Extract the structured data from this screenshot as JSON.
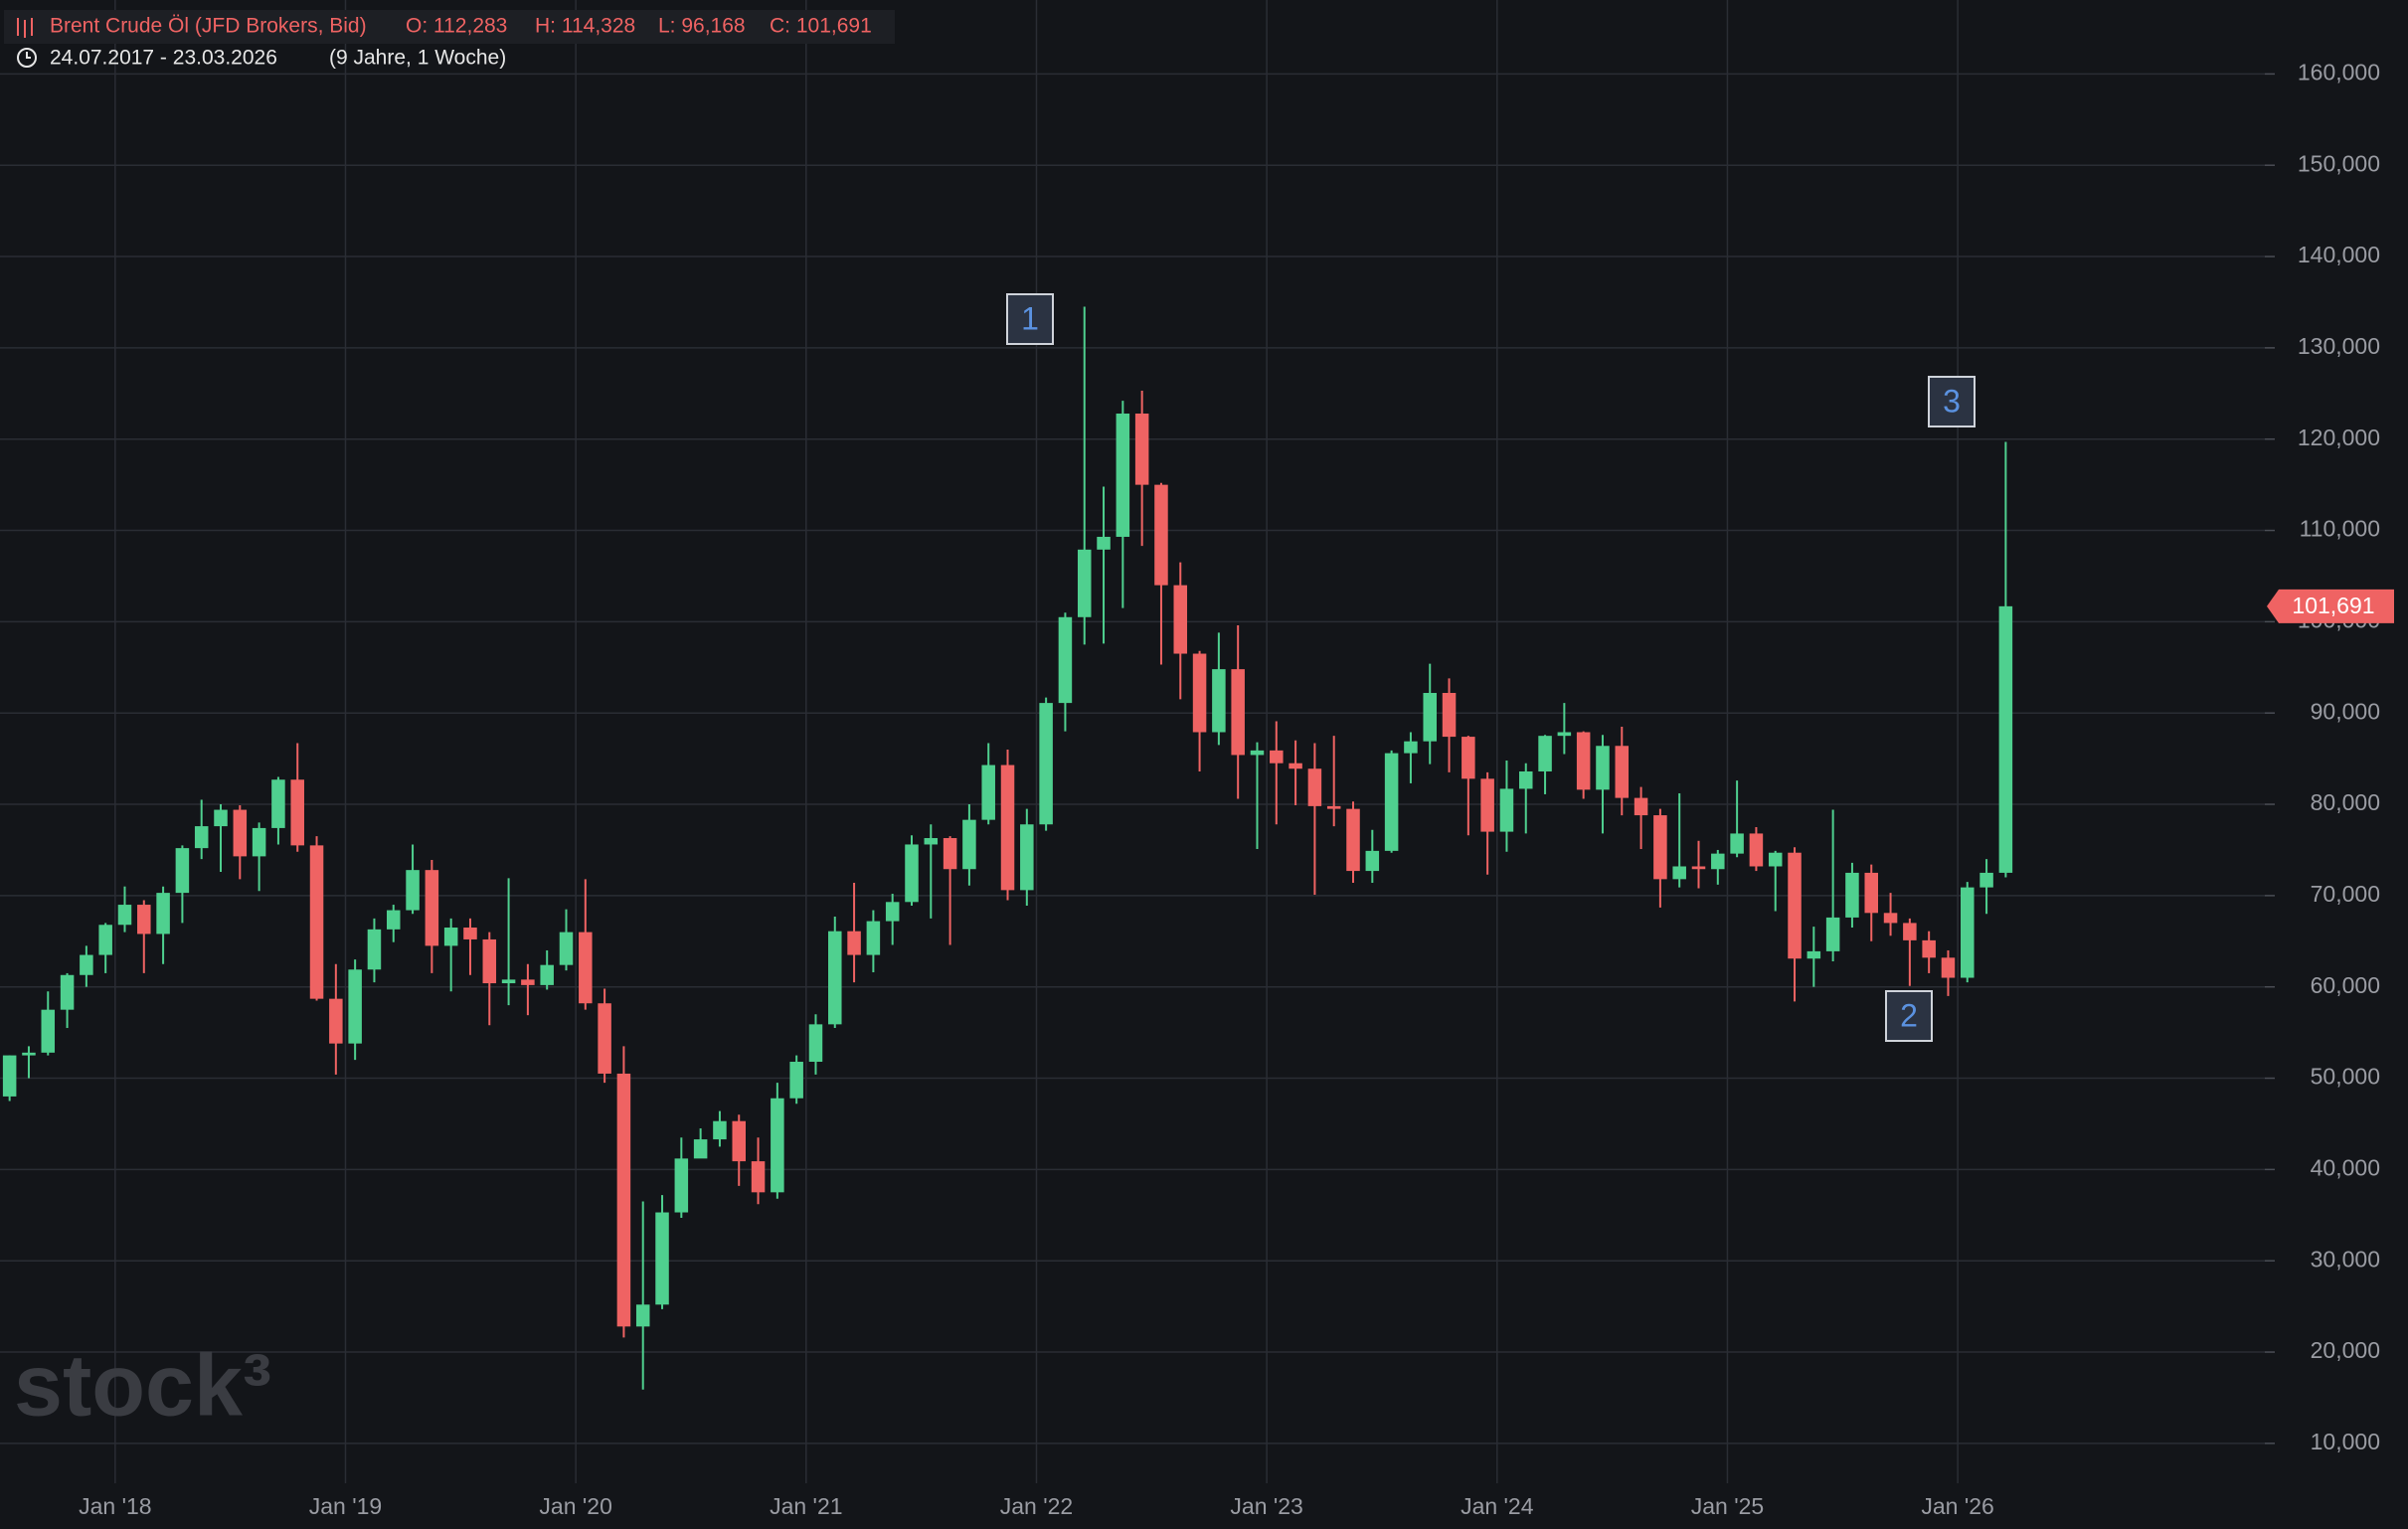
{
  "chart_data": {
    "type": "candlestick",
    "legend": {
      "name": "Brent Crude Öl (JFD Brokers, Bid)",
      "open": "O: 112,283",
      "high": "H: 114,328",
      "low": "L: 96,168",
      "close": "C: 101,691",
      "range": "24.07.2017 - 23.03.2026",
      "period": "(9 Jahre, 1 Woche)"
    },
    "logo": "stock³",
    "up_color": "#4fd08f",
    "down_color": "#ef6363",
    "x": [
      "2017-07",
      "2017-08",
      "2017-09",
      "2017-10",
      "2017-11",
      "2017-12",
      "2018-01",
      "2018-02",
      "2018-03",
      "2018-04",
      "2018-05",
      "2018-06",
      "2018-07",
      "2018-08",
      "2018-09",
      "2018-10",
      "2018-11",
      "2018-12",
      "2019-01",
      "2019-02",
      "2019-03",
      "2019-04",
      "2019-05",
      "2019-06",
      "2019-07",
      "2019-08",
      "2019-09",
      "2019-10",
      "2019-11",
      "2019-12",
      "2020-01",
      "2020-02",
      "2020-03",
      "2020-04",
      "2020-05",
      "2020-06",
      "2020-07",
      "2020-08",
      "2020-09",
      "2020-10",
      "2020-11",
      "2020-12",
      "2021-01",
      "2021-02",
      "2021-03",
      "2021-04",
      "2021-05",
      "2021-06",
      "2021-07",
      "2021-08",
      "2021-09",
      "2021-10",
      "2021-11",
      "2021-12",
      "2022-01",
      "2022-02",
      "2022-03",
      "2022-04",
      "2022-05",
      "2022-06",
      "2022-07",
      "2022-08",
      "2022-09",
      "2022-10",
      "2022-11",
      "2022-12",
      "2023-01",
      "2023-02",
      "2023-03",
      "2023-04",
      "2023-05",
      "2023-06",
      "2023-07",
      "2023-08",
      "2023-09",
      "2023-10",
      "2023-11",
      "2023-12",
      "2024-01",
      "2024-02",
      "2024-03",
      "2024-04",
      "2024-05",
      "2024-06",
      "2024-07",
      "2024-08",
      "2024-09",
      "2024-10",
      "2024-11",
      "2024-12",
      "2025-01",
      "2025-02",
      "2025-03",
      "2025-04",
      "2025-05",
      "2025-06",
      "2025-07",
      "2025-08",
      "2025-09",
      "2025-10",
      "2025-11",
      "2025-12",
      "2026-01",
      "2026-02",
      "2026-03"
    ],
    "open": [
      48,
      52.5,
      52.8,
      57.5,
      61.3,
      63.5,
      66.8,
      69,
      65.8,
      70.3,
      75.2,
      77.6,
      79.4,
      74.3,
      77.4,
      82.7,
      75.5,
      58.7,
      53.8,
      61.9,
      66.3,
      68.4,
      72.8,
      64.5,
      66.5,
      65.2,
      60.4,
      60.8,
      60.2,
      62.4,
      66,
      58.2,
      50.5,
      22.8,
      25.2,
      35.3,
      41.2,
      43.3,
      45.3,
      40.9,
      37.5,
      47.8,
      51.8,
      55.9,
      66.1,
      63.5,
      67.2,
      69.3,
      75.6,
      76.3,
      72.9,
      78.3,
      84.3,
      70.6,
      77.8,
      91.1,
      100.5,
      107.9,
      109.3,
      122.8,
      115,
      104,
      96.5,
      87.9,
      94.8,
      85.4,
      85.9,
      84.5,
      83.9,
      79.8,
      79.5,
      72.7,
      74.9,
      85.6,
      86.9,
      92.2,
      87.4,
      82.8,
      77,
      81.7,
      83.6,
      87.5,
      87.9,
      81.6,
      86.4,
      80.7,
      78.8,
      71.8,
      73.2,
      72.9,
      74.6,
      76.8,
      73.2,
      74.7,
      63.1,
      63.9,
      67.6,
      72.5,
      68.1,
      67,
      65.1,
      63.2,
      61,
      70.9,
      72.5
    ],
    "high": [
      52.5,
      53.5,
      59.5,
      61.5,
      64.5,
      67,
      71,
      69.5,
      71,
      75.5,
      80.5,
      80,
      79.9,
      78,
      83,
      86.7,
      76.5,
      62.5,
      63,
      67.5,
      69,
      75.6,
      73.9,
      67.5,
      67.5,
      66,
      71.9,
      62.5,
      64,
      68.5,
      71.8,
      59.8,
      53.5,
      36.5,
      37.2,
      43.5,
      44.5,
      46.4,
      46,
      43.5,
      49.5,
      52.5,
      57,
      67.7,
      71.4,
      68.4,
      70.2,
      76.6,
      77.8,
      76.5,
      80,
      86.7,
      86,
      79.5,
      91.7,
      101,
      134.5,
      114.8,
      124.2,
      125.3,
      115.2,
      106.5,
      96.8,
      98.8,
      99.6,
      86.8,
      89.1,
      87,
      86.7,
      87.5,
      80.3,
      77.2,
      85.9,
      87.9,
      95.4,
      93.8,
      87.5,
      83.5,
      84.8,
      84.5,
      87.6,
      91.1,
      88,
      87.6,
      88.5,
      81.9,
      79.5,
      81.2,
      76,
      75,
      82.6,
      77.5,
      74.9,
      75.3,
      66.6,
      79.4,
      73.6,
      73.4,
      70.3,
      67.5,
      66.1,
      64,
      71.5,
      74,
      119.7
    ],
    "low": [
      47.5,
      50,
      52.5,
      55.5,
      60,
      61.5,
      66,
      61.5,
      62.5,
      67,
      74,
      72.6,
      71.8,
      70.5,
      75.6,
      74.8,
      58.5,
      50.4,
      52,
      60.5,
      64.9,
      68,
      61.5,
      59.5,
      61.3,
      55.8,
      58,
      56.9,
      59.7,
      61.8,
      57.5,
      49.5,
      21.6,
      15.9,
      24.7,
      34.7,
      41.5,
      42.5,
      38.2,
      36.2,
      36.8,
      47.2,
      50.4,
      55.5,
      60.5,
      61.6,
      64.6,
      68.9,
      67.5,
      64.6,
      71.1,
      77.8,
      69.5,
      68.9,
      77.1,
      88,
      97.5,
      97.6,
      101.5,
      108.3,
      95.3,
      91.5,
      83.6,
      86.5,
      80.6,
      75.1,
      77.8,
      79.9,
      70.1,
      77.6,
      71.4,
      71.4,
      74.7,
      82.3,
      84.4,
      83.5,
      76.6,
      72.3,
      74.8,
      76.8,
      81.1,
      85.5,
      80.6,
      76.8,
      78.8,
      75.1,
      68.7,
      70.9,
      70.8,
      71.2,
      74.2,
      72.7,
      68.3,
      58.4,
      60,
      62.8,
      66.5,
      65,
      65.6,
      60.1,
      61.5,
      59,
      60.5,
      68,
      72
    ],
    "close": [
      52.5,
      52.8,
      57.5,
      61.3,
      63.5,
      66.8,
      69,
      65.8,
      70.3,
      75.2,
      77.6,
      79.4,
      74.3,
      77.4,
      82.7,
      75.5,
      58.7,
      53.8,
      61.9,
      66.3,
      68.4,
      72.8,
      64.5,
      66.5,
      65.2,
      60.4,
      60.8,
      60.2,
      62.4,
      66,
      58.2,
      50.5,
      22.8,
      25.2,
      35.3,
      41.2,
      43.3,
      45.3,
      40.9,
      37.5,
      47.8,
      51.8,
      55.9,
      66.1,
      63.5,
      67.2,
      69.3,
      75.6,
      76.3,
      72.9,
      78.3,
      84.3,
      70.6,
      77.8,
      91.1,
      100.5,
      107.9,
      109.3,
      122.8,
      115,
      104,
      96.5,
      87.9,
      94.8,
      85.4,
      85.9,
      84.5,
      83.9,
      79.8,
      79.5,
      72.7,
      74.9,
      85.6,
      86.9,
      92.2,
      87.4,
      82.8,
      77,
      81.7,
      83.6,
      87.5,
      87.9,
      81.6,
      86.4,
      80.7,
      78.8,
      71.8,
      73.2,
      72.9,
      74.6,
      76.8,
      73.2,
      74.7,
      63.1,
      63.9,
      67.6,
      72.5,
      68.1,
      67,
      65.1,
      63.2,
      61,
      70.9,
      72.5,
      101.691
    ],
    "last_price": {
      "value": 101.691,
      "label": "101,691"
    },
    "annotations": [
      "1",
      "2",
      "3"
    ],
    "xlim": [
      "2017-07",
      "2027-05"
    ],
    "xticks": [
      {
        "value": "2018-01",
        "label": "Jan '18"
      },
      {
        "value": "2019-01",
        "label": "Jan '19"
      },
      {
        "value": "2020-01",
        "label": "Jan '20"
      },
      {
        "value": "2021-01",
        "label": "Jan '21"
      },
      {
        "value": "2022-01",
        "label": "Jan '22"
      },
      {
        "value": "2023-01",
        "label": "Jan '23"
      },
      {
        "value": "2024-01",
        "label": "Jan '24"
      },
      {
        "value": "2025-01",
        "label": "Jan '25"
      },
      {
        "value": "2026-01",
        "label": "Jan '26"
      }
    ],
    "ylim": [
      5.63,
      168.1
    ],
    "yticks": [
      {
        "value": 10,
        "label": "10,000"
      },
      {
        "value": 20,
        "label": "20,000"
      },
      {
        "value": 30,
        "label": "30,000"
      },
      {
        "value": 40,
        "label": "40,000"
      },
      {
        "value": 50,
        "label": "50,000"
      },
      {
        "value": 60,
        "label": "60,000"
      },
      {
        "value": 70,
        "label": "70,000"
      },
      {
        "value": 80,
        "label": "80,000"
      },
      {
        "value": 90,
        "label": "90,000"
      },
      {
        "value": 100,
        "label": "100,000"
      },
      {
        "value": 110,
        "label": "110,000"
      },
      {
        "value": 120,
        "label": "120,000"
      },
      {
        "value": 130,
        "label": "130,000"
      },
      {
        "value": 140,
        "label": "140,000"
      },
      {
        "value": 150,
        "label": "150,000"
      },
      {
        "value": 160,
        "label": "160,000"
      }
    ],
    "grid": true
  }
}
